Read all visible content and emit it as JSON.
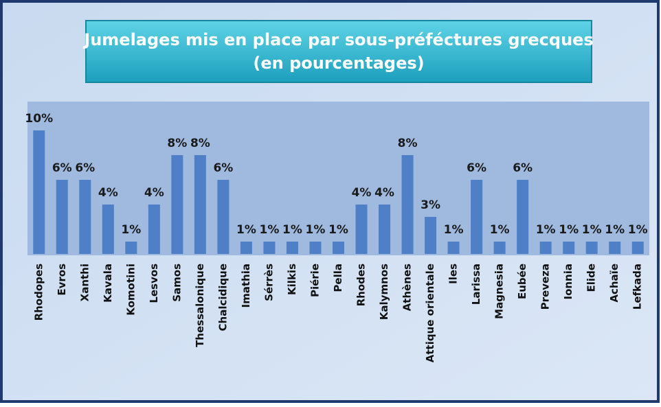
{
  "chart_data": {
    "type": "bar",
    "title": "Jumelages mis en place par sous-préféctures grecques",
    "subtitle": "(en pourcentages)",
    "categories": [
      "Rhodopes",
      "Evros",
      "Xanthi",
      "Kavala",
      "Komotini",
      "Lesvos",
      "Samos",
      "Thessalonique",
      "Chalcidique",
      "Imathia",
      "Sérrès",
      "Kilkis",
      "Piérie",
      "Pella",
      "Rhodes",
      "Kalymnos",
      "Athènes",
      "Attique orientale",
      "Iles",
      "Larissa",
      "Magnesia",
      "Eubée",
      "Preveza",
      "Ionnia",
      "Elide",
      "Achaïe",
      "Lefkada"
    ],
    "values": [
      10,
      6,
      6,
      4,
      1,
      4,
      8,
      8,
      6,
      1,
      1,
      1,
      1,
      1,
      4,
      4,
      8,
      3,
      1,
      6,
      1,
      6,
      1,
      1,
      1,
      1,
      1
    ],
    "value_labels": [
      "10%",
      "6%",
      "6%",
      "4%",
      "1%",
      "4%",
      "8%",
      "8%",
      "6%",
      "1%",
      "1%",
      "1%",
      "1%",
      "1%",
      "4%",
      "4%",
      "8%",
      "3%",
      "1%",
      "6%",
      "1%",
      "6%",
      "1%",
      "1%",
      "1%",
      "1%",
      "1%"
    ],
    "color": "#4f7fc6"
  }
}
